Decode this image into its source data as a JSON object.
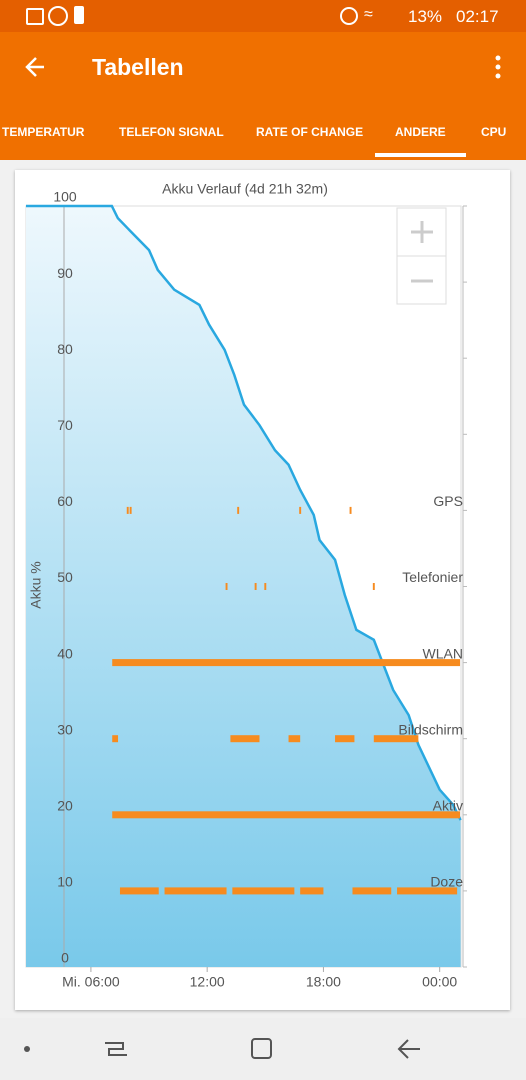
{
  "status_bar": {
    "battery": "13%",
    "time": "02:17"
  },
  "app_bar": {
    "title": "Tabellen"
  },
  "tabs": [
    "TEMPERATUR",
    "TELEFON SIGNAL",
    "RATE OF CHANGE",
    "ANDERE",
    "CPU"
  ],
  "selected_tab": 3,
  "chart_data": {
    "type": "area",
    "title": "Akku Verlauf (4d 21h 32m)",
    "y_label": "Akku %",
    "x": [
      2.65,
      7.08,
      7.39,
      8.0,
      9.0,
      9.45,
      10.3,
      11.6,
      12.1,
      12.9,
      13.4,
      13.9,
      14.7,
      15.5,
      16.2,
      16.8,
      17.5,
      17.8,
      18.6,
      19.1,
      19.7,
      20.6,
      21.1,
      21.6,
      22.4,
      22.9,
      24.0,
      24.7,
      25.08
    ],
    "series": [
      {
        "name": "Akku %",
        "color": "#29a8e0",
        "values": [
          100,
          100,
          98.4,
          96.8,
          94.2,
          91.6,
          89.0,
          87.0,
          84.4,
          81.1,
          77.8,
          73.9,
          71.2,
          67.9,
          66.0,
          62.7,
          59.4,
          56.1,
          53.5,
          48.9,
          44.3,
          43.0,
          39.7,
          36.4,
          33.1,
          29.2,
          23.3,
          21.3,
          19.3
        ]
      }
    ],
    "xlim": [
      2.65,
      25.1
    ],
    "ylim": [
      0,
      100
    ],
    "xticks": [
      {
        "value": 6,
        "label": "Mi. 06:00"
      },
      {
        "value": 12,
        "label": "12:00"
      },
      {
        "value": 18,
        "label": "18:00"
      },
      {
        "value": 24,
        "label": "00:00"
      }
    ],
    "yticks": [
      0,
      10,
      20,
      30,
      40,
      50,
      60,
      70,
      80,
      90,
      100
    ],
    "lane_color": "#f68b1f",
    "lanes": [
      {
        "name": "GPS",
        "level": 60,
        "segments": [
          [
            7.85,
            7.95
          ],
          [
            8.0,
            8.1
          ],
          [
            13.55,
            13.65
          ],
          [
            16.75,
            16.85
          ],
          [
            19.35,
            19.45
          ]
        ]
      },
      {
        "name": "Telefonier",
        "level": 50,
        "segments": [
          [
            12.95,
            13.05
          ],
          [
            14.45,
            14.55
          ],
          [
            14.95,
            15.05
          ],
          [
            20.55,
            20.65
          ]
        ]
      },
      {
        "name": "WLAN",
        "level": 40,
        "segments": [
          [
            7.1,
            25.05
          ]
        ]
      },
      {
        "name": "Bildschirm",
        "level": 30,
        "segments": [
          [
            7.1,
            7.4
          ],
          [
            13.2,
            14.7
          ],
          [
            16.2,
            16.8
          ],
          [
            18.6,
            19.6
          ],
          [
            20.6,
            22.9
          ]
        ]
      },
      {
        "name": "Aktiv",
        "level": 20,
        "segments": [
          [
            7.1,
            25.05
          ]
        ]
      },
      {
        "name": "Doze",
        "level": 10,
        "segments": [
          [
            7.5,
            9.5
          ],
          [
            9.8,
            13.0
          ],
          [
            13.3,
            16.5
          ],
          [
            16.8,
            18.0
          ],
          [
            19.5,
            21.5
          ],
          [
            21.8,
            24.9
          ]
        ]
      }
    ]
  }
}
